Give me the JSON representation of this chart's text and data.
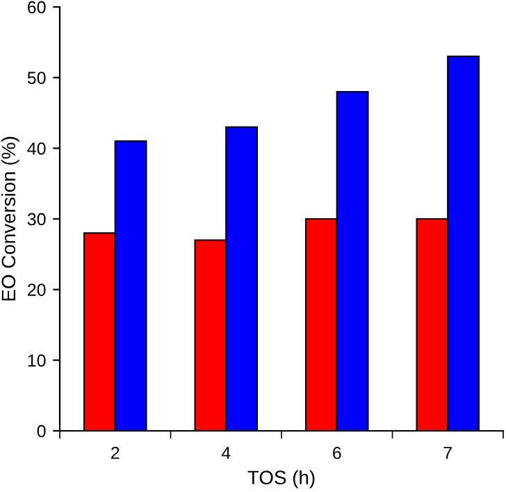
{
  "chart_data": {
    "type": "bar",
    "xlabel": "TOS (h)",
    "ylabel": "EO Conversion (%)",
    "categories": [
      "2",
      "4",
      "6",
      "7"
    ],
    "series": [
      {
        "color": "#ff0000",
        "values": [
          28,
          27,
          30,
          30
        ]
      },
      {
        "color": "#0000ff",
        "values": [
          41,
          43,
          48,
          53
        ]
      }
    ],
    "ylim": [
      0,
      60
    ],
    "yticks": [
      0,
      10,
      20,
      30,
      40,
      50,
      60
    ],
    "grid": false
  }
}
